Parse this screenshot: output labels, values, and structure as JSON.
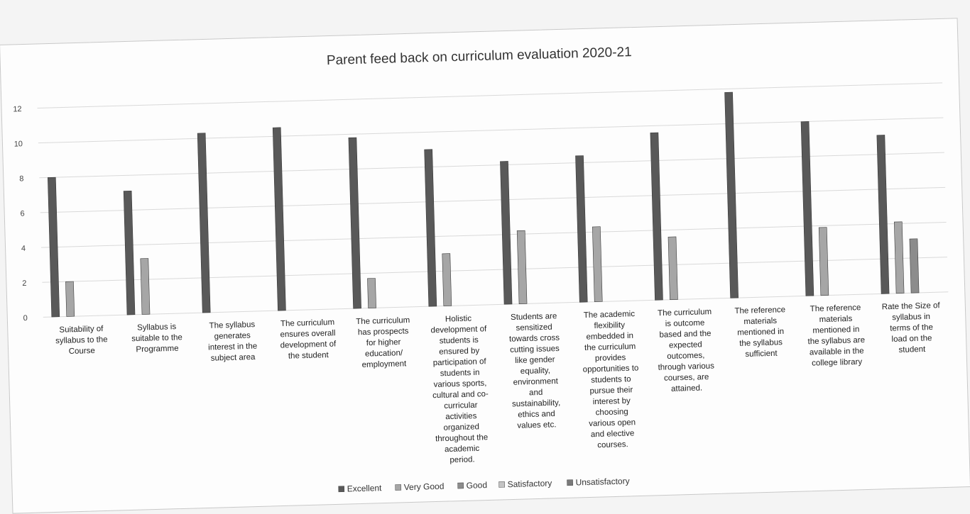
{
  "chart_data": {
    "type": "bar",
    "title": "Parent feed back on curriculum evaluation 2020-21",
    "xlabel": "",
    "ylabel": "",
    "ylim": [
      0,
      12
    ],
    "yticks": [
      0,
      2,
      4,
      6,
      8,
      10,
      12
    ],
    "grid": true,
    "legend_position": "bottom",
    "categories": [
      "Suitability of syllabus to the Course",
      "Syllabus is suitable to the Programme",
      "The syllabus generates interest in the subject area",
      "The curriculum ensures overall development of the student",
      "The curriculum has prospects for higher education/ employment",
      "Holistic development of students is ensured by participation of students in various sports, cultural and co-curricular activities organized throughout the academic period.",
      "Students are sensitized towards cross cutting issues like gender equality, environment and sustainability, ethics and values etc.",
      "The academic flexibility embedded in the curriculum provides opportunities to students to pursue their interest by choosing various open and elective courses.",
      "The curriculum is outcome based and the expected outcomes, through various courses, are attained.",
      "The reference materials mentioned in the syllabus sufficient",
      "The reference materials mentioned in the syllabus are available in the college library",
      "Rate the Size of syllabus in terms of the load on the student"
    ],
    "category_lines": [
      [
        "Suitability of",
        "syllabus to the",
        "Course"
      ],
      [
        "Syllabus is",
        "suitable to the",
        "Programme"
      ],
      [
        "The syllabus",
        "generates",
        "interest in the",
        "subject area"
      ],
      [
        "The curriculum",
        "ensures overall",
        "development of",
        "the student"
      ],
      [
        "The curriculum",
        "has prospects",
        "for higher",
        "education/",
        "employment"
      ],
      [
        "Holistic",
        "development of",
        "students is",
        "ensured by",
        "participation of",
        "students in",
        "various sports,",
        "cultural and co-",
        "curricular",
        "activities",
        "organized",
        "throughout the",
        "academic",
        "period."
      ],
      [
        "Students are",
        "sensitized",
        "towards cross",
        "cutting issues",
        "like gender",
        "equality,",
        "environment",
        "and",
        "sustainability,",
        "ethics and",
        "values etc."
      ],
      [
        "The academic",
        "flexibility",
        "embedded in",
        "the curriculum",
        "provides",
        "opportunities to",
        "students to",
        "pursue their",
        "interest by",
        "choosing",
        "various open",
        "and elective",
        "courses."
      ],
      [
        "The curriculum",
        "is outcome",
        "based and the",
        "expected",
        "outcomes,",
        "through various",
        "courses, are",
        "attained."
      ],
      [
        "The reference",
        "materials",
        "mentioned in",
        "the syllabus",
        "sufficient"
      ],
      [
        "The reference",
        "materials",
        "mentioned in",
        "the syllabus are",
        "available in the",
        "college library"
      ],
      [
        "Rate the Size of",
        "syllabus in",
        "terms of the",
        "load on the",
        "student"
      ]
    ],
    "series": [
      {
        "name": "Excellent",
        "color": "#595959",
        "values": [
          8,
          7.1,
          10.3,
          10.5,
          9.8,
          9,
          8.2,
          8.4,
          9.6,
          11.8,
          10,
          9.1
        ]
      },
      {
        "name": "Very Good",
        "color": "#a6a6a6",
        "values": [
          2,
          3.2,
          0,
          0,
          1.7,
          3,
          4.2,
          4.3,
          3.6,
          0,
          3.9,
          4.1
        ]
      },
      {
        "name": "Good",
        "color": "#8c8c8c",
        "values": [
          0,
          0,
          0,
          0,
          0,
          0,
          0,
          0,
          0,
          0,
          0,
          3.1
        ]
      },
      {
        "name": "Satisfactory",
        "color": "#c4c4c4",
        "values": [
          0,
          0,
          0,
          0,
          0,
          0,
          0,
          0,
          0,
          0,
          0,
          0
        ]
      },
      {
        "name": "Unsatisfactory",
        "color": "#7a7a7a",
        "values": [
          0,
          0,
          0,
          0,
          0,
          0,
          0,
          0,
          0,
          0,
          0,
          0
        ]
      }
    ]
  }
}
